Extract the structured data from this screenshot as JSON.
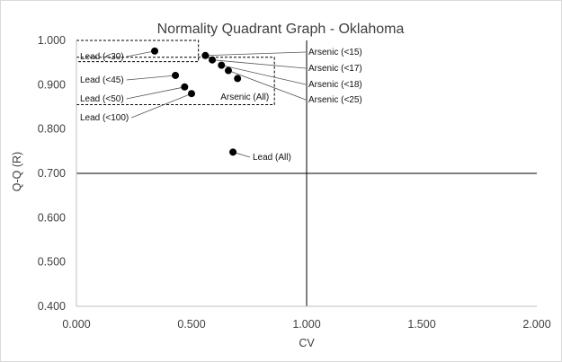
{
  "chart_data": {
    "type": "scatter",
    "title": "Normality Quadrant Graph - Oklahoma",
    "xlabel": "CV",
    "ylabel": "Q-Q (R)",
    "xlim": [
      0,
      2
    ],
    "ylim": [
      0.4,
      1.0
    ],
    "x_ticks": [
      "0.000",
      "0.500",
      "1.000",
      "1.500",
      "2.000"
    ],
    "y_ticks": [
      "0.400",
      "0.500",
      "0.600",
      "0.700",
      "0.800",
      "0.900",
      "1.000"
    ],
    "quadrant_lines": {
      "x": 1.0,
      "y": 0.7
    },
    "dashed_boxes": [
      {
        "x": [
          0.0,
          0.53
        ],
        "y": [
          0.952,
          1.0
        ]
      },
      {
        "x": [
          0.0,
          0.86
        ],
        "y": [
          0.855,
          0.962
        ]
      }
    ],
    "points": [
      {
        "x": 0.34,
        "y": 0.976,
        "label": "Lead (<30)"
      },
      {
        "x": 0.43,
        "y": 0.921,
        "label": "Lead (<45)"
      },
      {
        "x": 0.47,
        "y": 0.895,
        "label": "Lead (<50)"
      },
      {
        "x": 0.5,
        "y": 0.88,
        "label": "Lead (<100)"
      },
      {
        "x": 0.56,
        "y": 0.966,
        "label": "Arsenic (<15)"
      },
      {
        "x": 0.59,
        "y": 0.956,
        "label": "Arsenic (<17)"
      },
      {
        "x": 0.63,
        "y": 0.944,
        "label": "Arsenic (<18)"
      },
      {
        "x": 0.66,
        "y": 0.932,
        "label": "Arsenic (<25)"
      },
      {
        "x": 0.7,
        "y": 0.914,
        "label": ""
      },
      {
        "x": 0.68,
        "y": 0.748,
        "label": "Lead (All)"
      }
    ],
    "annotations": [
      {
        "text": "Arsenic (All)",
        "x": 0.86,
        "y": 0.862
      }
    ],
    "grid": false,
    "legend": "none",
    "colors": {
      "marker": "#000000",
      "axis": "#000000",
      "text": "#404040",
      "border": "#d9d9d9"
    }
  }
}
